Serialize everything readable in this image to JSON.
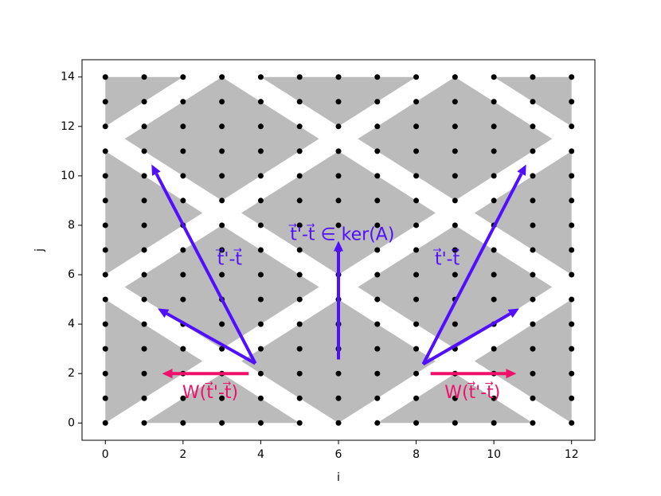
{
  "chart_data": {
    "type": "scatter",
    "x_label": "i",
    "y_label": "j",
    "xlim": [
      -0.6,
      12.6
    ],
    "ylim": [
      -0.7,
      14.7
    ],
    "xticks": [
      0,
      2,
      4,
      6,
      8,
      10,
      12
    ],
    "yticks": [
      0,
      2,
      4,
      6,
      8,
      10,
      12,
      14
    ],
    "grid_x": [
      0,
      1,
      2,
      3,
      4,
      5,
      6,
      7,
      8,
      9,
      10,
      11,
      12
    ],
    "grid_y": [
      0,
      1,
      2,
      3,
      4,
      5,
      6,
      7,
      8,
      9,
      10,
      11,
      12,
      13,
      14
    ],
    "point_color": "#000000",
    "region_color": "#bbbbbb",
    "regions": [
      [
        [
          0,
          17
        ],
        [
          2.5,
          14.5
        ],
        [
          0,
          12
        ],
        [
          -2.5,
          14.5
        ]
      ],
      [
        [
          6,
          17
        ],
        [
          8.5,
          14.5
        ],
        [
          6,
          12
        ],
        [
          3.5,
          14.5
        ]
      ],
      [
        [
          12,
          17
        ],
        [
          14.5,
          14.5
        ],
        [
          12,
          12
        ],
        [
          9.5,
          14.5
        ]
      ],
      [
        [
          3,
          14
        ],
        [
          5.5,
          11.5
        ],
        [
          3,
          9
        ],
        [
          0.5,
          11.5
        ]
      ],
      [
        [
          9,
          14
        ],
        [
          11.5,
          11.5
        ],
        [
          9,
          9
        ],
        [
          6.5,
          11.5
        ]
      ],
      [
        [
          0,
          11
        ],
        [
          2.5,
          8.5
        ],
        [
          0,
          6
        ],
        [
          -2.5,
          8.5
        ]
      ],
      [
        [
          6,
          11
        ],
        [
          8.5,
          8.5
        ],
        [
          6,
          6
        ],
        [
          3.5,
          8.5
        ]
      ],
      [
        [
          12,
          11
        ],
        [
          14.5,
          8.5
        ],
        [
          12,
          6
        ],
        [
          9.5,
          8.5
        ]
      ],
      [
        [
          3,
          8
        ],
        [
          5.5,
          5.5
        ],
        [
          3,
          3
        ],
        [
          0.5,
          5.5
        ]
      ],
      [
        [
          9,
          8
        ],
        [
          11.5,
          5.5
        ],
        [
          9,
          3
        ],
        [
          6.5,
          5.5
        ]
      ],
      [
        [
          0,
          5
        ],
        [
          2.5,
          2.5
        ],
        [
          0,
          0
        ],
        [
          -2.5,
          2.5
        ]
      ],
      [
        [
          6,
          5
        ],
        [
          8.5,
          2.5
        ],
        [
          6,
          0
        ],
        [
          3.5,
          2.5
        ]
      ],
      [
        [
          12,
          5
        ],
        [
          14.5,
          2.5
        ],
        [
          12,
          0
        ],
        [
          9.5,
          2.5
        ]
      ],
      [
        [
          3,
          2
        ],
        [
          5.5,
          -0.5
        ],
        [
          3,
          -3
        ],
        [
          0.5,
          -0.5
        ]
      ],
      [
        [
          9,
          2
        ],
        [
          11.5,
          -0.5
        ],
        [
          9,
          -3
        ],
        [
          6.5,
          -0.5
        ]
      ]
    ],
    "arrows": [
      {
        "x": [
          3.86,
          1.19
        ],
        "y": [
          2.41,
          10.46
        ],
        "color": "#5010ff"
      },
      {
        "x": [
          3.86,
          1.35
        ],
        "y": [
          2.41,
          4.63
        ],
        "color": "#5010ff"
      },
      {
        "x": [
          6,
          6
        ],
        "y": [
          2.57,
          7.37
        ],
        "color": "#5010ff"
      },
      {
        "x": [
          8.18,
          10.83
        ],
        "y": [
          2.38,
          10.46
        ],
        "color": "#5010ff"
      },
      {
        "x": [
          8.18,
          10.65
        ],
        "y": [
          2.38,
          4.63
        ],
        "color": "#5010ff"
      },
      {
        "x": [
          3.69,
          1.46
        ],
        "y": [
          2.0,
          2.0
        ],
        "color": "#f0106a"
      },
      {
        "x": [
          8.37,
          10.58
        ],
        "y": [
          2.0,
          2.0
        ],
        "color": "#f0106a"
      }
    ],
    "annotations": [
      {
        "text": "t⃗'-t⃗",
        "x": 3.2,
        "y": 6.6,
        "color": "#5010ff"
      },
      {
        "text": "t⃗'-t⃗ ∈ ker(A)",
        "x": 6.1,
        "y": 7.6,
        "color": "#5010ff"
      },
      {
        "text": "t⃗'-t⃗",
        "x": 8.8,
        "y": 6.6,
        "color": "#5010ff"
      },
      {
        "text": "W(t⃗'-t⃗)",
        "x": 2.7,
        "y": 1.2,
        "color": "#f0106a"
      },
      {
        "text": "W(t⃗'-t⃗)",
        "x": 9.45,
        "y": 1.2,
        "color": "#f0106a"
      }
    ]
  }
}
